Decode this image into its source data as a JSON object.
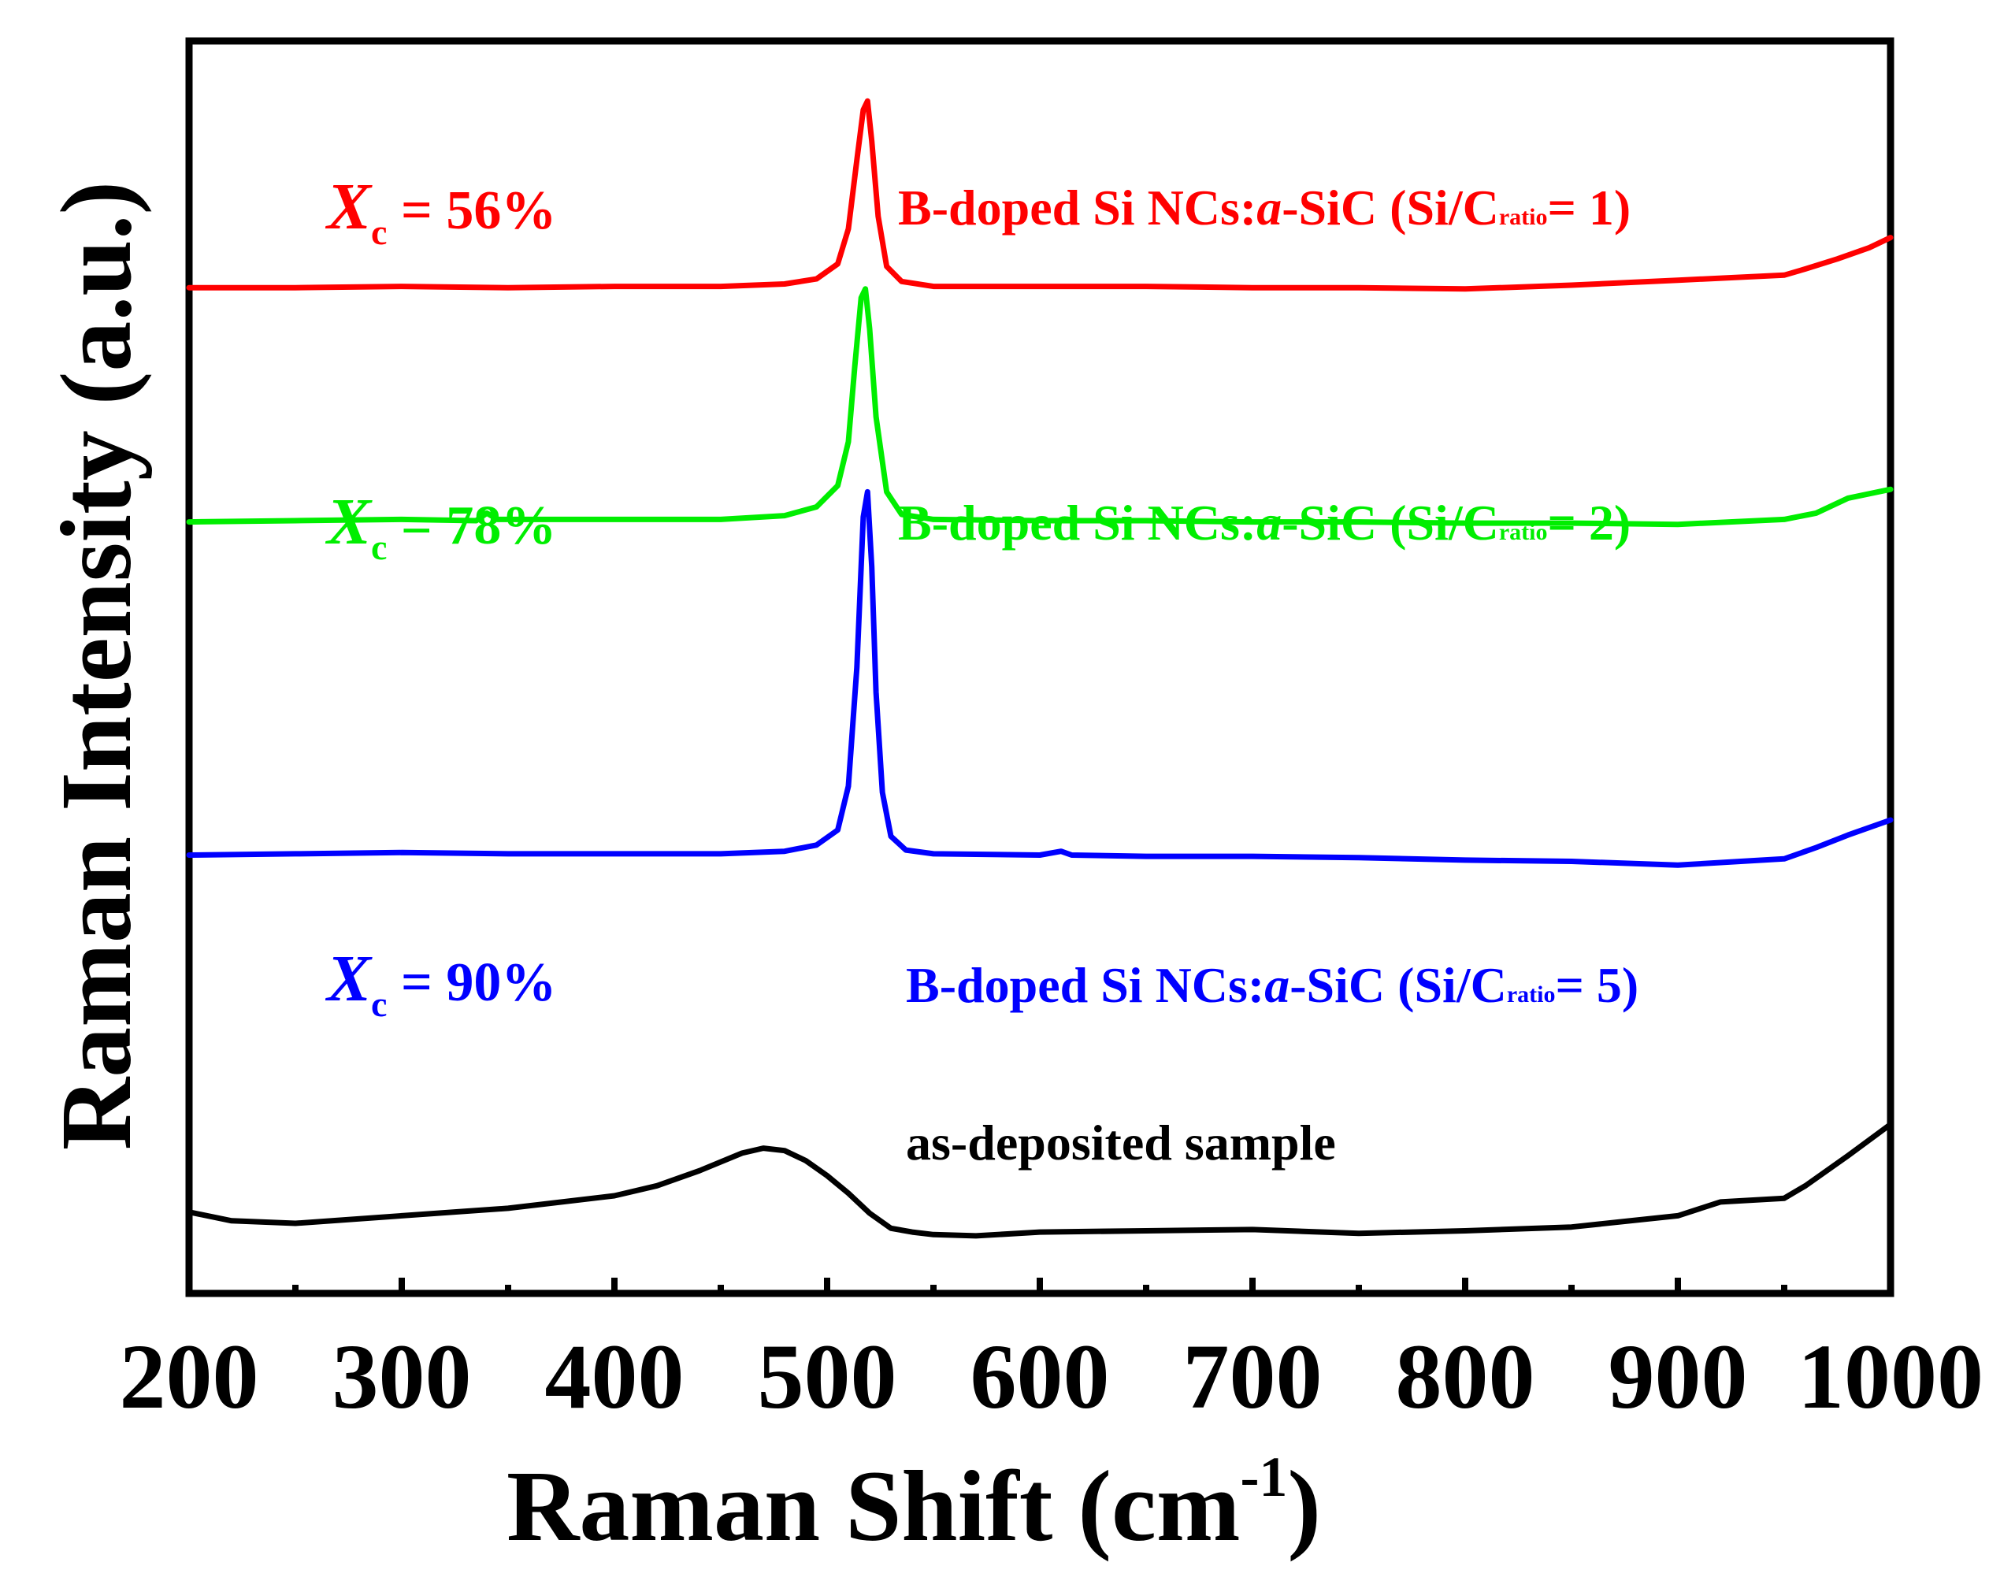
{
  "chart_data": {
    "type": "line",
    "title": "",
    "xlabel": "Raman Shift (cm",
    "xlabel_sup": "-1",
    "xlabel_close": ")",
    "ylabel": "Raman Intensity (a.u.)",
    "xlim": [
      200,
      1000
    ],
    "ylim": [
      0,
      100
    ],
    "x_ticks": [
      200,
      300,
      400,
      500,
      600,
      700,
      800,
      900,
      1000
    ],
    "x_minor_ticks": [
      250,
      350,
      450,
      550,
      650,
      750,
      850,
      950
    ],
    "grid": false,
    "legend": "none",
    "series": [
      {
        "name": "B-doped Si NCs:a-SiC (Si/C ratio = 1)",
        "color": "#ff0000",
        "x": [
          200,
          250,
          300,
          350,
          400,
          450,
          480,
          495,
          505,
          510,
          514,
          517,
          519,
          521,
          524,
          528,
          535,
          550,
          600,
          650,
          700,
          750,
          800,
          850,
          900,
          950,
          960,
          975,
          990,
          1000
        ],
        "y": [
          80.3,
          80.3,
          80.4,
          80.3,
          80.4,
          80.4,
          80.6,
          81.0,
          82.2,
          85.0,
          90.5,
          94.5,
          95.2,
          92.0,
          86.0,
          82.0,
          80.8,
          80.4,
          80.4,
          80.4,
          80.3,
          80.3,
          80.2,
          80.5,
          80.9,
          81.3,
          81.8,
          82.6,
          83.5,
          84.3
        ]
      },
      {
        "name": "B-doped Si NCs:a-SiC (Si/C ratio = 2)",
        "color": "#00ee00",
        "x": [
          200,
          250,
          300,
          335,
          340,
          345,
          400,
          450,
          480,
          495,
          505,
          510,
          513,
          516,
          518,
          520,
          523,
          528,
          535,
          550,
          600,
          650,
          700,
          750,
          800,
          850,
          900,
          950,
          965,
          980,
          1000
        ],
        "y": [
          61.6,
          61.7,
          61.8,
          61.7,
          62.3,
          61.8,
          61.8,
          61.8,
          62.1,
          62.8,
          64.5,
          68.0,
          74.0,
          79.5,
          80.2,
          77.0,
          70.0,
          64.0,
          62.2,
          61.8,
          61.7,
          61.7,
          61.6,
          61.6,
          61.5,
          61.5,
          61.4,
          61.8,
          62.3,
          63.5,
          64.2
        ]
      },
      {
        "name": "B-doped Si NCs:a-SiC (Si/C ratio = 5)",
        "color": "#0000ff",
        "x": [
          200,
          250,
          300,
          350,
          400,
          450,
          480,
          495,
          505,
          510,
          514,
          517,
          519,
          521,
          523,
          526,
          530,
          537,
          550,
          600,
          610,
          615,
          650,
          700,
          750,
          800,
          850,
          900,
          950,
          965,
          980,
          1000
        ],
        "y": [
          35.0,
          35.1,
          35.2,
          35.1,
          35.1,
          35.1,
          35.3,
          35.8,
          37.0,
          40.5,
          50.0,
          62.0,
          64.0,
          58.0,
          48.0,
          40.0,
          36.5,
          35.4,
          35.1,
          35.0,
          35.3,
          35.0,
          34.9,
          34.9,
          34.8,
          34.6,
          34.5,
          34.2,
          34.7,
          35.6,
          36.6,
          37.8
        ]
      },
      {
        "name": "as-deposited sample",
        "color": "#000000",
        "x": [
          200,
          220,
          250,
          300,
          350,
          400,
          420,
          440,
          460,
          470,
          480,
          490,
          500,
          510,
          520,
          530,
          540,
          550,
          570,
          600,
          650,
          700,
          750,
          800,
          850,
          900,
          920,
          950,
          960,
          980,
          1000
        ],
        "y": [
          6.5,
          5.8,
          5.6,
          6.2,
          6.8,
          7.8,
          8.6,
          9.8,
          11.2,
          11.6,
          11.4,
          10.6,
          9.4,
          8.0,
          6.4,
          5.2,
          4.9,
          4.7,
          4.6,
          4.9,
          5.0,
          5.1,
          4.8,
          5.0,
          5.3,
          6.2,
          7.3,
          7.6,
          8.6,
          11.0,
          13.5
        ]
      }
    ]
  },
  "annotations": [
    {
      "x_prefix": "X",
      "x_sub": "c",
      "text": " = 56%",
      "color": "#ff0000",
      "sample_prefix": "B-doped Si NCs:",
      "sample_italic": "a",
      "sample_mid": "-SiC (Si/C",
      "sample_sub": "ratio",
      "sample_suffix": "= 1)"
    },
    {
      "x_prefix": "X",
      "x_sub": "c",
      "text": " = 78%",
      "color": "#00ee00",
      "sample_prefix": "B-doped Si NCs:",
      "sample_italic": "a",
      "sample_mid": "-SiC (Si/C",
      "sample_sub": "ratio",
      "sample_suffix": "= 2)"
    },
    {
      "x_prefix": "X",
      "x_sub": "c",
      "text": " = 90%",
      "color": "#0000ff",
      "sample_prefix": "B-doped Si NCs:",
      "sample_italic": "a",
      "sample_mid": "-SiC (Si/C",
      "sample_sub": "ratio",
      "sample_suffix": "= 5)"
    }
  ],
  "as_deposited_label": "as-deposited sample"
}
